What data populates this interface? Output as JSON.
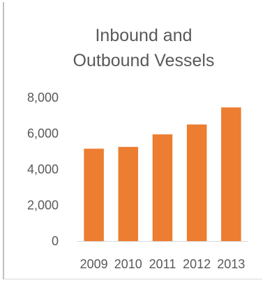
{
  "chart_data": {
    "type": "bar",
    "title": "Inbound and\nOutbound Vessels",
    "categories": [
      "2009",
      "2010",
      "2011",
      "2012",
      "2013"
    ],
    "values": [
      5150,
      5250,
      5950,
      6500,
      7450
    ],
    "ylim": [
      0,
      8000
    ],
    "yticks": [
      0,
      2000,
      4000,
      6000,
      8000
    ],
    "ytick_labels": [
      "0",
      "2,000",
      "4,000",
      "6,000",
      "8,000"
    ],
    "grid": false,
    "legend": "none",
    "bar_color": "#ed7d31",
    "text_color": "#595959"
  }
}
